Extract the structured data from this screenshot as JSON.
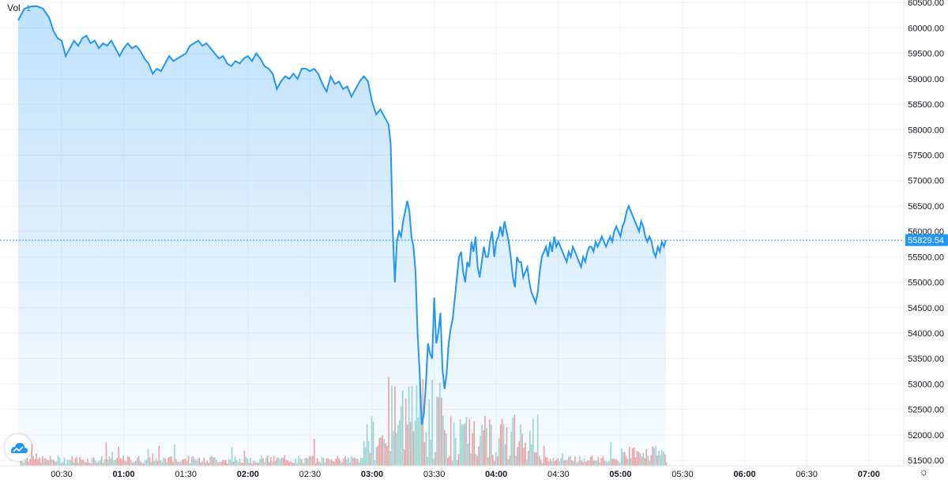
{
  "legend": {
    "label": "Vol",
    "value": "1"
  },
  "colors": {
    "line": "#2196f3",
    "vol_up": "#9fd7cf",
    "vol_down": "#f2a1a0",
    "last_price_bg": "#2196f3"
  },
  "icons": {
    "logo": "tradingview-cloud-icon",
    "settings": "gear-icon"
  },
  "chart_data": {
    "type": "area",
    "ylim": [
      51300,
      60550
    ],
    "y_ticks": [
      "60500.00",
      "60000.00",
      "59500.00",
      "59000.00",
      "58500.00",
      "58000.00",
      "57500.00",
      "57000.00",
      "56500.00",
      "56000.00",
      "55500.00",
      "55000.00",
      "54500.00",
      "54000.00",
      "53500.00",
      "53000.00",
      "52500.00",
      "52000.00",
      "51500.00"
    ],
    "x_ticks": [
      {
        "label": "00:30",
        "major": false
      },
      {
        "label": "01:00",
        "major": true
      },
      {
        "label": "01:30",
        "major": false
      },
      {
        "label": "02:00",
        "major": true
      },
      {
        "label": "02:30",
        "major": false
      },
      {
        "label": "03:00",
        "major": true
      },
      {
        "label": "03:30",
        "major": false
      },
      {
        "label": "04:00",
        "major": true
      },
      {
        "label": "04:30",
        "major": false
      },
      {
        "label": "05:00",
        "major": true
      },
      {
        "label": "05:30",
        "major": false
      },
      {
        "label": "06:00",
        "major": true
      },
      {
        "label": "06:30",
        "major": false
      },
      {
        "label": "07:00",
        "major": true
      }
    ],
    "x_range_minutes": [
      9,
      413
    ],
    "last_price": "55829.54",
    "series": [
      {
        "points": [
          [
            9,
            60150
          ],
          [
            12,
            60380
          ],
          [
            15,
            60420
          ],
          [
            18,
            60430
          ],
          [
            21,
            60380
          ],
          [
            24,
            60200
          ],
          [
            26,
            59950
          ],
          [
            28,
            59800
          ],
          [
            30,
            59750
          ],
          [
            32,
            59450
          ],
          [
            34,
            59600
          ],
          [
            36,
            59750
          ],
          [
            38,
            59650
          ],
          [
            40,
            59800
          ],
          [
            42,
            59850
          ],
          [
            44,
            59700
          ],
          [
            46,
            59750
          ],
          [
            48,
            59600
          ],
          [
            50,
            59700
          ],
          [
            52,
            59650
          ],
          [
            54,
            59750
          ],
          [
            56,
            59600
          ],
          [
            58,
            59450
          ],
          [
            60,
            59600
          ],
          [
            62,
            59700
          ],
          [
            64,
            59600
          ],
          [
            66,
            59650
          ],
          [
            68,
            59550
          ],
          [
            70,
            59400
          ],
          [
            72,
            59300
          ],
          [
            74,
            59100
          ],
          [
            76,
            59200
          ],
          [
            78,
            59150
          ],
          [
            80,
            59300
          ],
          [
            82,
            59450
          ],
          [
            84,
            59350
          ],
          [
            86,
            59400
          ],
          [
            88,
            59450
          ],
          [
            90,
            59500
          ],
          [
            92,
            59650
          ],
          [
            94,
            59700
          ],
          [
            96,
            59750
          ],
          [
            98,
            59650
          ],
          [
            100,
            59700
          ],
          [
            102,
            59600
          ],
          [
            104,
            59500
          ],
          [
            106,
            59400
          ],
          [
            108,
            59450
          ],
          [
            110,
            59300
          ],
          [
            112,
            59250
          ],
          [
            114,
            59350
          ],
          [
            116,
            59300
          ],
          [
            118,
            59400
          ],
          [
            120,
            59450
          ],
          [
            122,
            59350
          ],
          [
            124,
            59500
          ],
          [
            126,
            59400
          ],
          [
            128,
            59250
          ],
          [
            130,
            59200
          ],
          [
            132,
            59100
          ],
          [
            134,
            58800
          ],
          [
            136,
            58950
          ],
          [
            138,
            59050
          ],
          [
            140,
            59000
          ],
          [
            142,
            59100
          ],
          [
            144,
            59000
          ],
          [
            146,
            59200
          ],
          [
            148,
            59200
          ],
          [
            150,
            59150
          ],
          [
            152,
            59200
          ],
          [
            154,
            59100
          ],
          [
            156,
            58900
          ],
          [
            158,
            58750
          ],
          [
            160,
            59050
          ],
          [
            162,
            58900
          ],
          [
            164,
            58950
          ],
          [
            166,
            58800
          ],
          [
            168,
            58850
          ],
          [
            170,
            58650
          ],
          [
            172,
            58800
          ],
          [
            174,
            58950
          ],
          [
            176,
            59050
          ],
          [
            178,
            58950
          ],
          [
            180,
            58550
          ],
          [
            182,
            58300
          ],
          [
            184,
            58400
          ],
          [
            186,
            58250
          ],
          [
            188,
            58100
          ],
          [
            189,
            57700
          ],
          [
            190,
            56000
          ],
          [
            191,
            55000
          ],
          [
            192,
            55800
          ],
          [
            193,
            56000
          ],
          [
            194,
            55900
          ],
          [
            195,
            56200
          ],
          [
            196,
            56400
          ],
          [
            197,
            56600
          ],
          [
            198,
            56400
          ],
          [
            199,
            55900
          ],
          [
            200,
            55700
          ],
          [
            201,
            55200
          ],
          [
            202,
            54000
          ],
          [
            203,
            53200
          ],
          [
            204,
            52200
          ],
          [
            205,
            52400
          ],
          [
            206,
            53000
          ],
          [
            207,
            53800
          ],
          [
            208,
            53600
          ],
          [
            209,
            53500
          ],
          [
            210,
            54700
          ],
          [
            211,
            53800
          ],
          [
            212,
            54000
          ],
          [
            213,
            54400
          ],
          [
            214,
            53300
          ],
          [
            215,
            52900
          ],
          [
            216,
            53200
          ],
          [
            217,
            53800
          ],
          [
            218,
            54100
          ],
          [
            219,
            54300
          ],
          [
            220,
            54700
          ],
          [
            221,
            55100
          ],
          [
            222,
            55500
          ],
          [
            223,
            55600
          ],
          [
            224,
            55200
          ],
          [
            225,
            55000
          ],
          [
            226,
            55400
          ],
          [
            227,
            55300
          ],
          [
            228,
            55800
          ],
          [
            229,
            55600
          ],
          [
            230,
            55900
          ],
          [
            231,
            55300
          ],
          [
            232,
            55100
          ],
          [
            233,
            55400
          ],
          [
            234,
            55700
          ],
          [
            235,
            55500
          ],
          [
            236,
            55500
          ],
          [
            237,
            55800
          ],
          [
            238,
            56000
          ],
          [
            239,
            55500
          ],
          [
            240,
            55800
          ],
          [
            241,
            55900
          ],
          [
            242,
            56100
          ],
          [
            243,
            55900
          ],
          [
            244,
            56200
          ],
          [
            245,
            56000
          ],
          [
            246,
            55800
          ],
          [
            247,
            55500
          ],
          [
            248,
            55100
          ],
          [
            249,
            54900
          ],
          [
            250,
            55500
          ],
          [
            251,
            55400
          ],
          [
            252,
            55400
          ],
          [
            253,
            55100
          ],
          [
            254,
            55200
          ],
          [
            255,
            55300
          ],
          [
            256,
            55000
          ],
          [
            257,
            54800
          ],
          [
            258,
            54700
          ],
          [
            259,
            54600
          ],
          [
            260,
            54800
          ],
          [
            261,
            55200
          ],
          [
            262,
            55500
          ],
          [
            263,
            55600
          ],
          [
            264,
            55700
          ],
          [
            265,
            55500
          ],
          [
            266,
            55800
          ],
          [
            267,
            55600
          ],
          [
            268,
            55900
          ],
          [
            269,
            55700
          ],
          [
            270,
            55800
          ],
          [
            271,
            55700
          ],
          [
            272,
            55600
          ],
          [
            273,
            55500
          ],
          [
            274,
            55400
          ],
          [
            275,
            55600
          ],
          [
            276,
            55500
          ],
          [
            277,
            55700
          ],
          [
            278,
            55600
          ],
          [
            279,
            55500
          ],
          [
            280,
            55400
          ],
          [
            281,
            55300
          ],
          [
            282,
            55500
          ],
          [
            283,
            55400
          ],
          [
            284,
            55600
          ],
          [
            285,
            55700
          ],
          [
            286,
            55700
          ],
          [
            287,
            55600
          ],
          [
            288,
            55800
          ],
          [
            289,
            55700
          ],
          [
            290,
            55800
          ],
          [
            291,
            55900
          ],
          [
            292,
            55800
          ],
          [
            293,
            55700
          ],
          [
            294,
            55800
          ],
          [
            295,
            55900
          ],
          [
            296,
            55800
          ],
          [
            297,
            56000
          ],
          [
            298,
            56100
          ],
          [
            299,
            56000
          ],
          [
            300,
            55900
          ],
          [
            301,
            56100
          ],
          [
            302,
            56200
          ],
          [
            303,
            56400
          ],
          [
            304,
            56500
          ],
          [
            305,
            56400
          ],
          [
            306,
            56300
          ],
          [
            307,
            56200
          ],
          [
            308,
            56100
          ],
          [
            309,
            56000
          ],
          [
            310,
            56200
          ],
          [
            311,
            56100
          ],
          [
            312,
            55900
          ],
          [
            313,
            55800
          ],
          [
            314,
            55900
          ],
          [
            315,
            55800
          ],
          [
            316,
            55600
          ],
          [
            317,
            55500
          ],
          [
            318,
            55700
          ],
          [
            319,
            55600
          ],
          [
            320,
            55800
          ],
          [
            321,
            55700
          ],
          [
            322,
            55829.54
          ]
        ]
      }
    ]
  }
}
